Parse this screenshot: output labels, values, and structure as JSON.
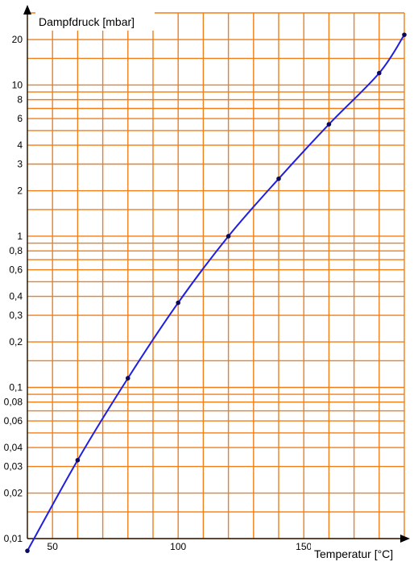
{
  "chart_data": {
    "type": "line",
    "ylabel": "Dampfdruck [mbar]",
    "xlabel": "Temperatur [°C]",
    "y_scale": "log",
    "x_range": [
      40,
      190
    ],
    "y_range": [
      0.01,
      30
    ],
    "x_ticks": [
      {
        "value": 50,
        "label": "50"
      },
      {
        "value": 100,
        "label": "100"
      },
      {
        "value": 150,
        "label": "150"
      }
    ],
    "y_ticks": [
      {
        "value": 0.01,
        "label": "0,01"
      },
      {
        "value": 0.02,
        "label": "0,02"
      },
      {
        "value": 0.03,
        "label": "0,03"
      },
      {
        "value": 0.04,
        "label": "0,04"
      },
      {
        "value": 0.06,
        "label": "0,06"
      },
      {
        "value": 0.08,
        "label": "0,08"
      },
      {
        "value": 0.1,
        "label": "0,1"
      },
      {
        "value": 0.2,
        "label": "0,2"
      },
      {
        "value": 0.3,
        "label": "0,3"
      },
      {
        "value": 0.4,
        "label": "0,4"
      },
      {
        "value": 0.6,
        "label": "0,6"
      },
      {
        "value": 0.8,
        "label": "0,8"
      },
      {
        "value": 1,
        "label": "1"
      },
      {
        "value": 2,
        "label": "2"
      },
      {
        "value": 3,
        "label": "3"
      },
      {
        "value": 4,
        "label": "4"
      },
      {
        "value": 6,
        "label": "6"
      },
      {
        "value": 8,
        "label": "8"
      },
      {
        "value": 10,
        "label": "10"
      },
      {
        "value": 20,
        "label": "20"
      }
    ],
    "grid": true,
    "grid_color": "#f07f1b",
    "line_color": "#1f1fe0",
    "marker_color": "#0a0a5a",
    "series": [
      {
        "x": [
          40,
          60,
          80,
          100,
          120,
          140,
          160,
          180,
          190
        ],
        "y": [
          0.0083,
          0.033,
          0.115,
          0.363,
          1.0,
          2.4,
          5.5,
          12.0,
          21.5
        ]
      }
    ]
  }
}
